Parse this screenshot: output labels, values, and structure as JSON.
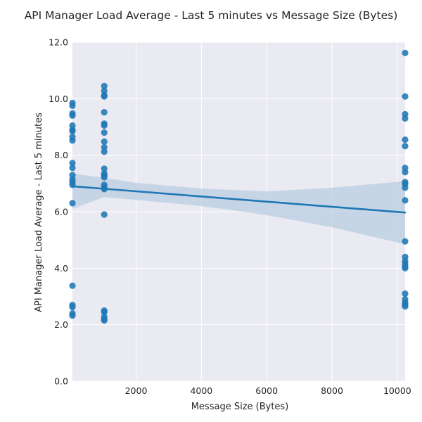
{
  "chart_data": {
    "type": "scatter",
    "title": "API Manager Load Average - Last 5 minutes vs Message Size (Bytes)",
    "xlabel": "Message Size (Bytes)",
    "ylabel": "API Manager Load Average - Last 5 minutes",
    "xlim": [
      50,
      10240
    ],
    "ylim": [
      0,
      12
    ],
    "x_ticks": [
      2000,
      4000,
      6000,
      8000,
      10000
    ],
    "x_tick_labels": [
      "2000",
      "4000",
      "6000",
      "8000",
      "10000"
    ],
    "y_ticks": [
      0,
      2,
      4,
      6,
      8,
      10,
      12
    ],
    "y_tick_labels": [
      "0.0",
      "2.0",
      "4.0",
      "6.0",
      "8.0",
      "10.0",
      "12.0"
    ],
    "grid": true,
    "legend": "none",
    "colors": {
      "background": "#eaeaf2",
      "grid": "#ffffff",
      "point": "#1f77b4",
      "line": "#1f77b4",
      "band": "#b8cde2"
    },
    "points": [
      {
        "x": 50,
        "y": 9.85
      },
      {
        "x": 50,
        "y": 9.75
      },
      {
        "x": 50,
        "y": 9.48
      },
      {
        "x": 50,
        "y": 9.4
      },
      {
        "x": 50,
        "y": 9.05
      },
      {
        "x": 50,
        "y": 8.9
      },
      {
        "x": 50,
        "y": 8.85
      },
      {
        "x": 50,
        "y": 8.65
      },
      {
        "x": 50,
        "y": 8.52
      },
      {
        "x": 50,
        "y": 7.72
      },
      {
        "x": 50,
        "y": 7.55
      },
      {
        "x": 50,
        "y": 7.3
      },
      {
        "x": 50,
        "y": 7.15
      },
      {
        "x": 50,
        "y": 7.05
      },
      {
        "x": 50,
        "y": 6.95
      },
      {
        "x": 50,
        "y": 6.3
      },
      {
        "x": 50,
        "y": 3.38
      },
      {
        "x": 50,
        "y": 2.7
      },
      {
        "x": 50,
        "y": 2.62
      },
      {
        "x": 50,
        "y": 2.4
      },
      {
        "x": 50,
        "y": 2.32
      },
      {
        "x": 1024,
        "y": 10.45
      },
      {
        "x": 1024,
        "y": 10.28
      },
      {
        "x": 1024,
        "y": 10.12
      },
      {
        "x": 1024,
        "y": 10.08
      },
      {
        "x": 1024,
        "y": 9.52
      },
      {
        "x": 1024,
        "y": 9.12
      },
      {
        "x": 1024,
        "y": 9.05
      },
      {
        "x": 1024,
        "y": 8.8
      },
      {
        "x": 1024,
        "y": 8.48
      },
      {
        "x": 1024,
        "y": 8.28
      },
      {
        "x": 1024,
        "y": 8.12
      },
      {
        "x": 1024,
        "y": 7.52
      },
      {
        "x": 1024,
        "y": 7.35
      },
      {
        "x": 1024,
        "y": 7.28
      },
      {
        "x": 1024,
        "y": 7.22
      },
      {
        "x": 1024,
        "y": 6.95
      },
      {
        "x": 1024,
        "y": 6.85
      },
      {
        "x": 1024,
        "y": 6.8
      },
      {
        "x": 1024,
        "y": 5.9
      },
      {
        "x": 1024,
        "y": 2.5
      },
      {
        "x": 1024,
        "y": 2.45
      },
      {
        "x": 1024,
        "y": 2.28
      },
      {
        "x": 1024,
        "y": 2.2
      },
      {
        "x": 1024,
        "y": 2.15
      },
      {
        "x": 10240,
        "y": 11.62
      },
      {
        "x": 10240,
        "y": 10.08
      },
      {
        "x": 10240,
        "y": 9.45
      },
      {
        "x": 10240,
        "y": 9.3
      },
      {
        "x": 10240,
        "y": 8.55
      },
      {
        "x": 10240,
        "y": 8.32
      },
      {
        "x": 10240,
        "y": 7.55
      },
      {
        "x": 10240,
        "y": 7.4
      },
      {
        "x": 10240,
        "y": 7.05
      },
      {
        "x": 10240,
        "y": 6.98
      },
      {
        "x": 10240,
        "y": 6.85
      },
      {
        "x": 10240,
        "y": 6.4
      },
      {
        "x": 10240,
        "y": 4.95
      },
      {
        "x": 10240,
        "y": 4.4
      },
      {
        "x": 10240,
        "y": 4.25
      },
      {
        "x": 10240,
        "y": 4.15
      },
      {
        "x": 10240,
        "y": 4.05
      },
      {
        "x": 10240,
        "y": 4.0
      },
      {
        "x": 10240,
        "y": 3.1
      },
      {
        "x": 10240,
        "y": 2.9
      },
      {
        "x": 10240,
        "y": 2.78
      },
      {
        "x": 10240,
        "y": 2.72
      },
      {
        "x": 10240,
        "y": 2.65
      }
    ],
    "regression": {
      "x": [
        50,
        10240
      ],
      "y": [
        6.9,
        5.97
      ]
    },
    "confidence_band": {
      "x": [
        50,
        1024,
        2000,
        4000,
        6000,
        8000,
        10240
      ],
      "upper": [
        7.35,
        7.2,
        7.02,
        6.82,
        6.72,
        6.85,
        7.08
      ],
      "lower": [
        6.1,
        6.52,
        6.42,
        6.2,
        5.88,
        5.45,
        4.85
      ]
    }
  }
}
